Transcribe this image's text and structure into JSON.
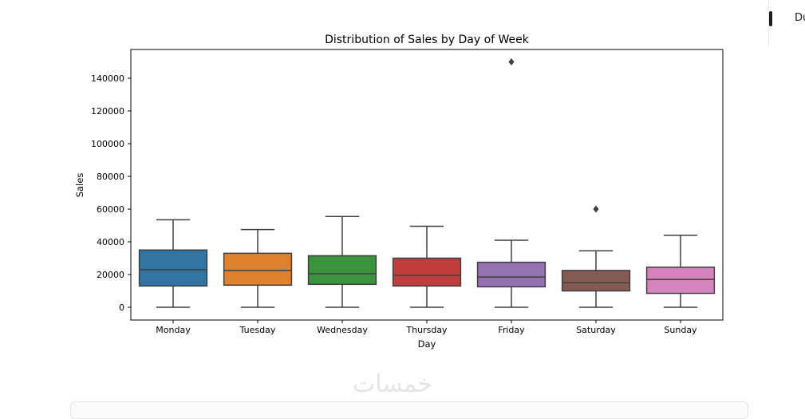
{
  "chart_data": {
    "type": "box",
    "title": "Distribution of Sales by Day of Week",
    "xlabel": "Day",
    "ylabel": "Sales",
    "ylim": [
      -7500,
      157000
    ],
    "yticks": [
      0,
      20000,
      40000,
      60000,
      80000,
      100000,
      120000,
      140000
    ],
    "grid": false,
    "categories": [
      "Monday",
      "Tuesday",
      "Wednesday",
      "Thursday",
      "Friday",
      "Saturday",
      "Sunday"
    ],
    "boxes": [
      {
        "category": "Monday",
        "whisker_low": 0,
        "q1": 13000,
        "median": 23000,
        "q3": 35000,
        "whisker_high": 53500,
        "outliers": [],
        "color": "#3274a1"
      },
      {
        "category": "Tuesday",
        "whisker_low": 0,
        "q1": 13500,
        "median": 22500,
        "q3": 33000,
        "whisker_high": 47500,
        "outliers": [],
        "color": "#e1812c"
      },
      {
        "category": "Wednesday",
        "whisker_low": 0,
        "q1": 14000,
        "median": 20500,
        "q3": 31500,
        "whisker_high": 55500,
        "outliers": [],
        "color": "#3a923a"
      },
      {
        "category": "Thursday",
        "whisker_low": 0,
        "q1": 13000,
        "median": 19500,
        "q3": 30000,
        "whisker_high": 49500,
        "outliers": [],
        "color": "#c03d3e"
      },
      {
        "category": "Friday",
        "whisker_low": 0,
        "q1": 12500,
        "median": 18500,
        "q3": 27500,
        "whisker_high": 41000,
        "outliers": [
          150000
        ],
        "color": "#9372b2"
      },
      {
        "category": "Saturday",
        "whisker_low": 0,
        "q1": 10000,
        "median": 15000,
        "q3": 22500,
        "whisker_high": 34500,
        "outliers": [
          60000
        ],
        "color": "#845b53"
      },
      {
        "category": "Sunday",
        "whisker_low": 0,
        "q1": 8500,
        "median": 17000,
        "q3": 24500,
        "whisker_high": 44000,
        "outliers": [],
        "color": "#d684bd"
      }
    ]
  },
  "side_panel": {
    "text": "Du"
  },
  "watermark": {
    "text": "خمسات"
  }
}
